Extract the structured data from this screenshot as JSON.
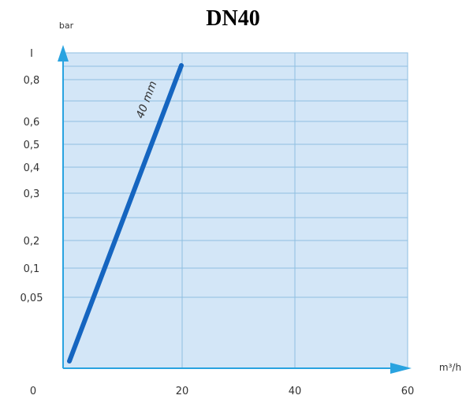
{
  "chart_data": {
    "type": "line",
    "title": "DN40",
    "xlabel": "m³/h",
    "ylabel": "bar",
    "x_ticks": [
      {
        "value": 0,
        "label": "0"
      },
      {
        "value": 20,
        "label": "20"
      },
      {
        "value": 40,
        "label": "40"
      },
      {
        "value": 60,
        "label": "60"
      }
    ],
    "y_ticks": [
      {
        "value": 1,
        "label": "I"
      },
      {
        "value": 0.8,
        "label": "0,8"
      },
      {
        "value": 0.6,
        "label": "0,6"
      },
      {
        "value": 0.5,
        "label": "0,5"
      },
      {
        "value": 0.4,
        "label": "0,4"
      },
      {
        "value": 0.3,
        "label": "0,3"
      },
      {
        "value": 0.2,
        "label": "0,2"
      },
      {
        "value": 0.1,
        "label": "0,1"
      },
      {
        "value": 0.05,
        "label": "0,05"
      }
    ],
    "x_range": [
      0,
      60
    ],
    "grid": true,
    "series": [
      {
        "name": "40 mm",
        "color": "#1565c0",
        "points": [
          {
            "x": 6,
            "y": 0.02
          },
          {
            "x": 20,
            "y": 0.9
          }
        ]
      }
    ],
    "colors": {
      "plot_background": "#d3e6f7",
      "grid": "#8fbfe0",
      "axis_arrow": "#29a3e0",
      "series_line": "#1565c0"
    }
  }
}
